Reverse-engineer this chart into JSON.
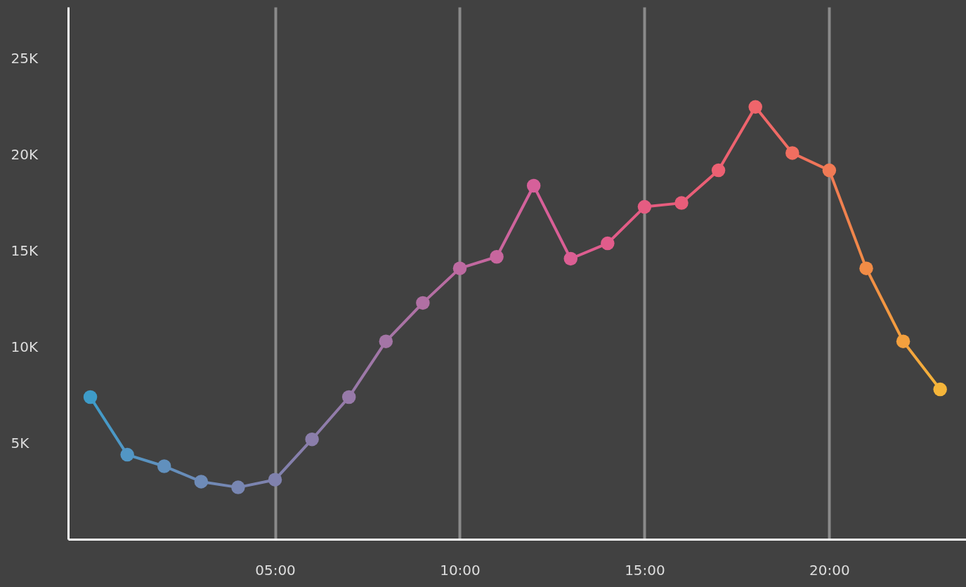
{
  "chart_data": {
    "type": "line",
    "x": [
      0,
      1,
      2,
      3,
      4,
      5,
      6,
      7,
      8,
      9,
      10,
      11,
      12,
      13,
      14,
      15,
      16,
      17,
      18,
      19,
      20,
      21,
      22,
      23
    ],
    "values": [
      7400,
      4400,
      3800,
      3000,
      2700,
      3100,
      5200,
      7400,
      10300,
      12300,
      14100,
      14700,
      18400,
      14600,
      15400,
      17300,
      17500,
      19200,
      22500,
      20100,
      19200,
      14100,
      10300,
      7800
    ],
    "colors": [
      "#3e9cc9",
      "#5296c4",
      "#6190bd",
      "#6e8bb7",
      "#7886b2",
      "#8082ae",
      "#8b7eab",
      "#977aa9",
      "#a475a6",
      "#b170a4",
      "#bd6aa1",
      "#c8669e",
      "#d6609a",
      "#dc5e93",
      "#e15c8b",
      "#e55c82",
      "#e95d7a",
      "#ec6072",
      "#ef656b",
      "#f06e60",
      "#f07a55",
      "#f18c46",
      "#f3a03e",
      "#f5b53a"
    ],
    "xlim": [
      -0.6,
      23.7
    ],
    "xticks": [
      {
        "value": 5,
        "label": "05:00"
      },
      {
        "value": 10,
        "label": "10:00"
      },
      {
        "value": 15,
        "label": "15:00"
      },
      {
        "value": 20,
        "label": "20:00"
      }
    ],
    "ylim": [
      0,
      27700
    ],
    "yticks": [
      {
        "value": 5000,
        "label": "5K"
      },
      {
        "value": 10000,
        "label": "10K"
      },
      {
        "value": 15000,
        "label": "15K"
      },
      {
        "value": 20000,
        "label": "20K"
      },
      {
        "value": 25000,
        "label": "25K"
      }
    ],
    "grid": "x",
    "marker": "circle",
    "line_style": "solid"
  }
}
